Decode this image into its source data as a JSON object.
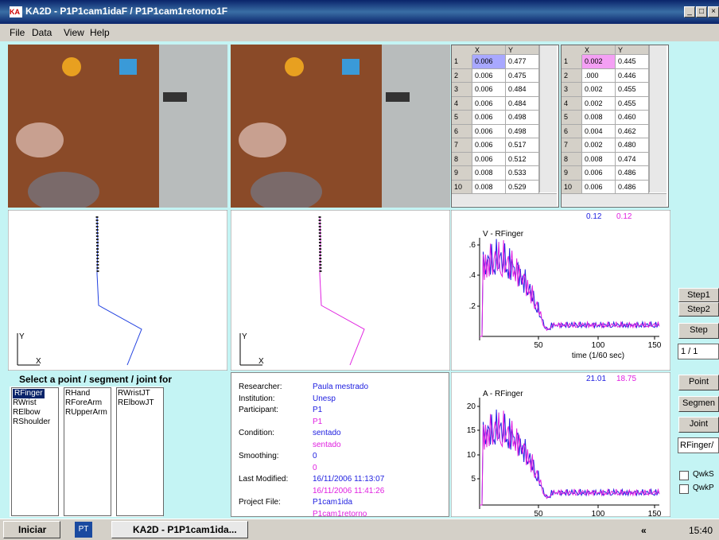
{
  "window": {
    "icon": "KA",
    "title": "KA2D - P1P1cam1idaF / P1P1cam1retorno1F"
  },
  "menu": [
    "File",
    "Data",
    "View",
    "Help"
  ],
  "tables": [
    {
      "headers": [
        "X",
        "Y"
      ],
      "rows": [
        [
          "1",
          "0.006",
          "0.477"
        ],
        [
          "2",
          "0.006",
          "0.475"
        ],
        [
          "3",
          "0.006",
          "0.484"
        ],
        [
          "4",
          "0.006",
          "0.484"
        ],
        [
          "5",
          "0.006",
          "0.498"
        ],
        [
          "6",
          "0.006",
          "0.498"
        ],
        [
          "7",
          "0.006",
          "0.517"
        ],
        [
          "8",
          "0.006",
          "0.512"
        ],
        [
          "9",
          "0.008",
          "0.533"
        ],
        [
          "10",
          "0.008",
          "0.529"
        ]
      ]
    },
    {
      "headers": [
        "X",
        "Y"
      ],
      "rows": [
        [
          "1",
          "0.002",
          "0.445"
        ],
        [
          "2",
          ".000",
          "0.446"
        ],
        [
          "3",
          "0.002",
          "0.455"
        ],
        [
          "4",
          "0.002",
          "0.455"
        ],
        [
          "5",
          "0.008",
          "0.460"
        ],
        [
          "6",
          "0.004",
          "0.462"
        ],
        [
          "7",
          "0.002",
          "0.480"
        ],
        [
          "8",
          "0.008",
          "0.474"
        ],
        [
          "9",
          "0.006",
          "0.486"
        ],
        [
          "10",
          "0.006",
          "0.486"
        ]
      ]
    }
  ],
  "trajectories": [
    {
      "ylabel": "Y",
      "xlabel": "X"
    },
    {
      "ylabel": "Y",
      "xlabel": "X"
    }
  ],
  "graphs": [
    {
      "title": "V - RFinger",
      "readouts": [
        "0.12",
        "0.12"
      ],
      "yticks": [
        ".6",
        ".4",
        ".2"
      ],
      "xticks": [
        "50",
        "100",
        "150"
      ],
      "xlabel": "time (1/60 sec)"
    },
    {
      "title": "A - RFinger",
      "readouts": [
        "21.01",
        "18.75"
      ],
      "yticks": [
        "20",
        "15",
        "10",
        "5"
      ],
      "xticks": [
        "50",
        "100",
        "150"
      ]
    }
  ],
  "select": {
    "title": "Select a point / segment / joint for",
    "lists": [
      [
        "RFinger",
        "RWrist",
        "RElbow",
        "RShoulder"
      ],
      [
        "RHand",
        "RForeArm",
        "RUpperArm"
      ],
      [
        "RWristJT",
        "RElbowJT"
      ]
    ]
  },
  "info": [
    {
      "label": "Researcher:",
      "values": [
        "Paula mestrado"
      ]
    },
    {
      "label": "Institution:",
      "values": [
        "Unesp"
      ]
    },
    {
      "label": "Participant:",
      "values": [
        "P1",
        "P1"
      ]
    },
    {
      "label": "Condition:",
      "values": [
        "sentado",
        "sentado"
      ]
    },
    {
      "label": "Smoothing:",
      "values": [
        "0",
        "0"
      ]
    },
    {
      "label": "Last Modified:",
      "values": [
        "16/11/2006 11:13:07",
        "16/11/2006 11:41:26"
      ]
    },
    {
      "label": "Project File:",
      "values": [
        "P1cam1ida",
        "P1cam1retorno"
      ]
    }
  ],
  "controls": {
    "step1": "Step1",
    "step2": "Step2",
    "step": "Step",
    "frame": "1 / 1",
    "point": "Point",
    "segment": "Segmen",
    "joint": "Joint",
    "selection": "RFinger/",
    "checks": [
      "QwkS",
      "QwkP"
    ]
  },
  "taskbar": {
    "start": "Iniciar",
    "lang": "PT",
    "task": "KA2D - P1P1cam1ida...",
    "tray": "«",
    "clock": "15:40"
  }
}
